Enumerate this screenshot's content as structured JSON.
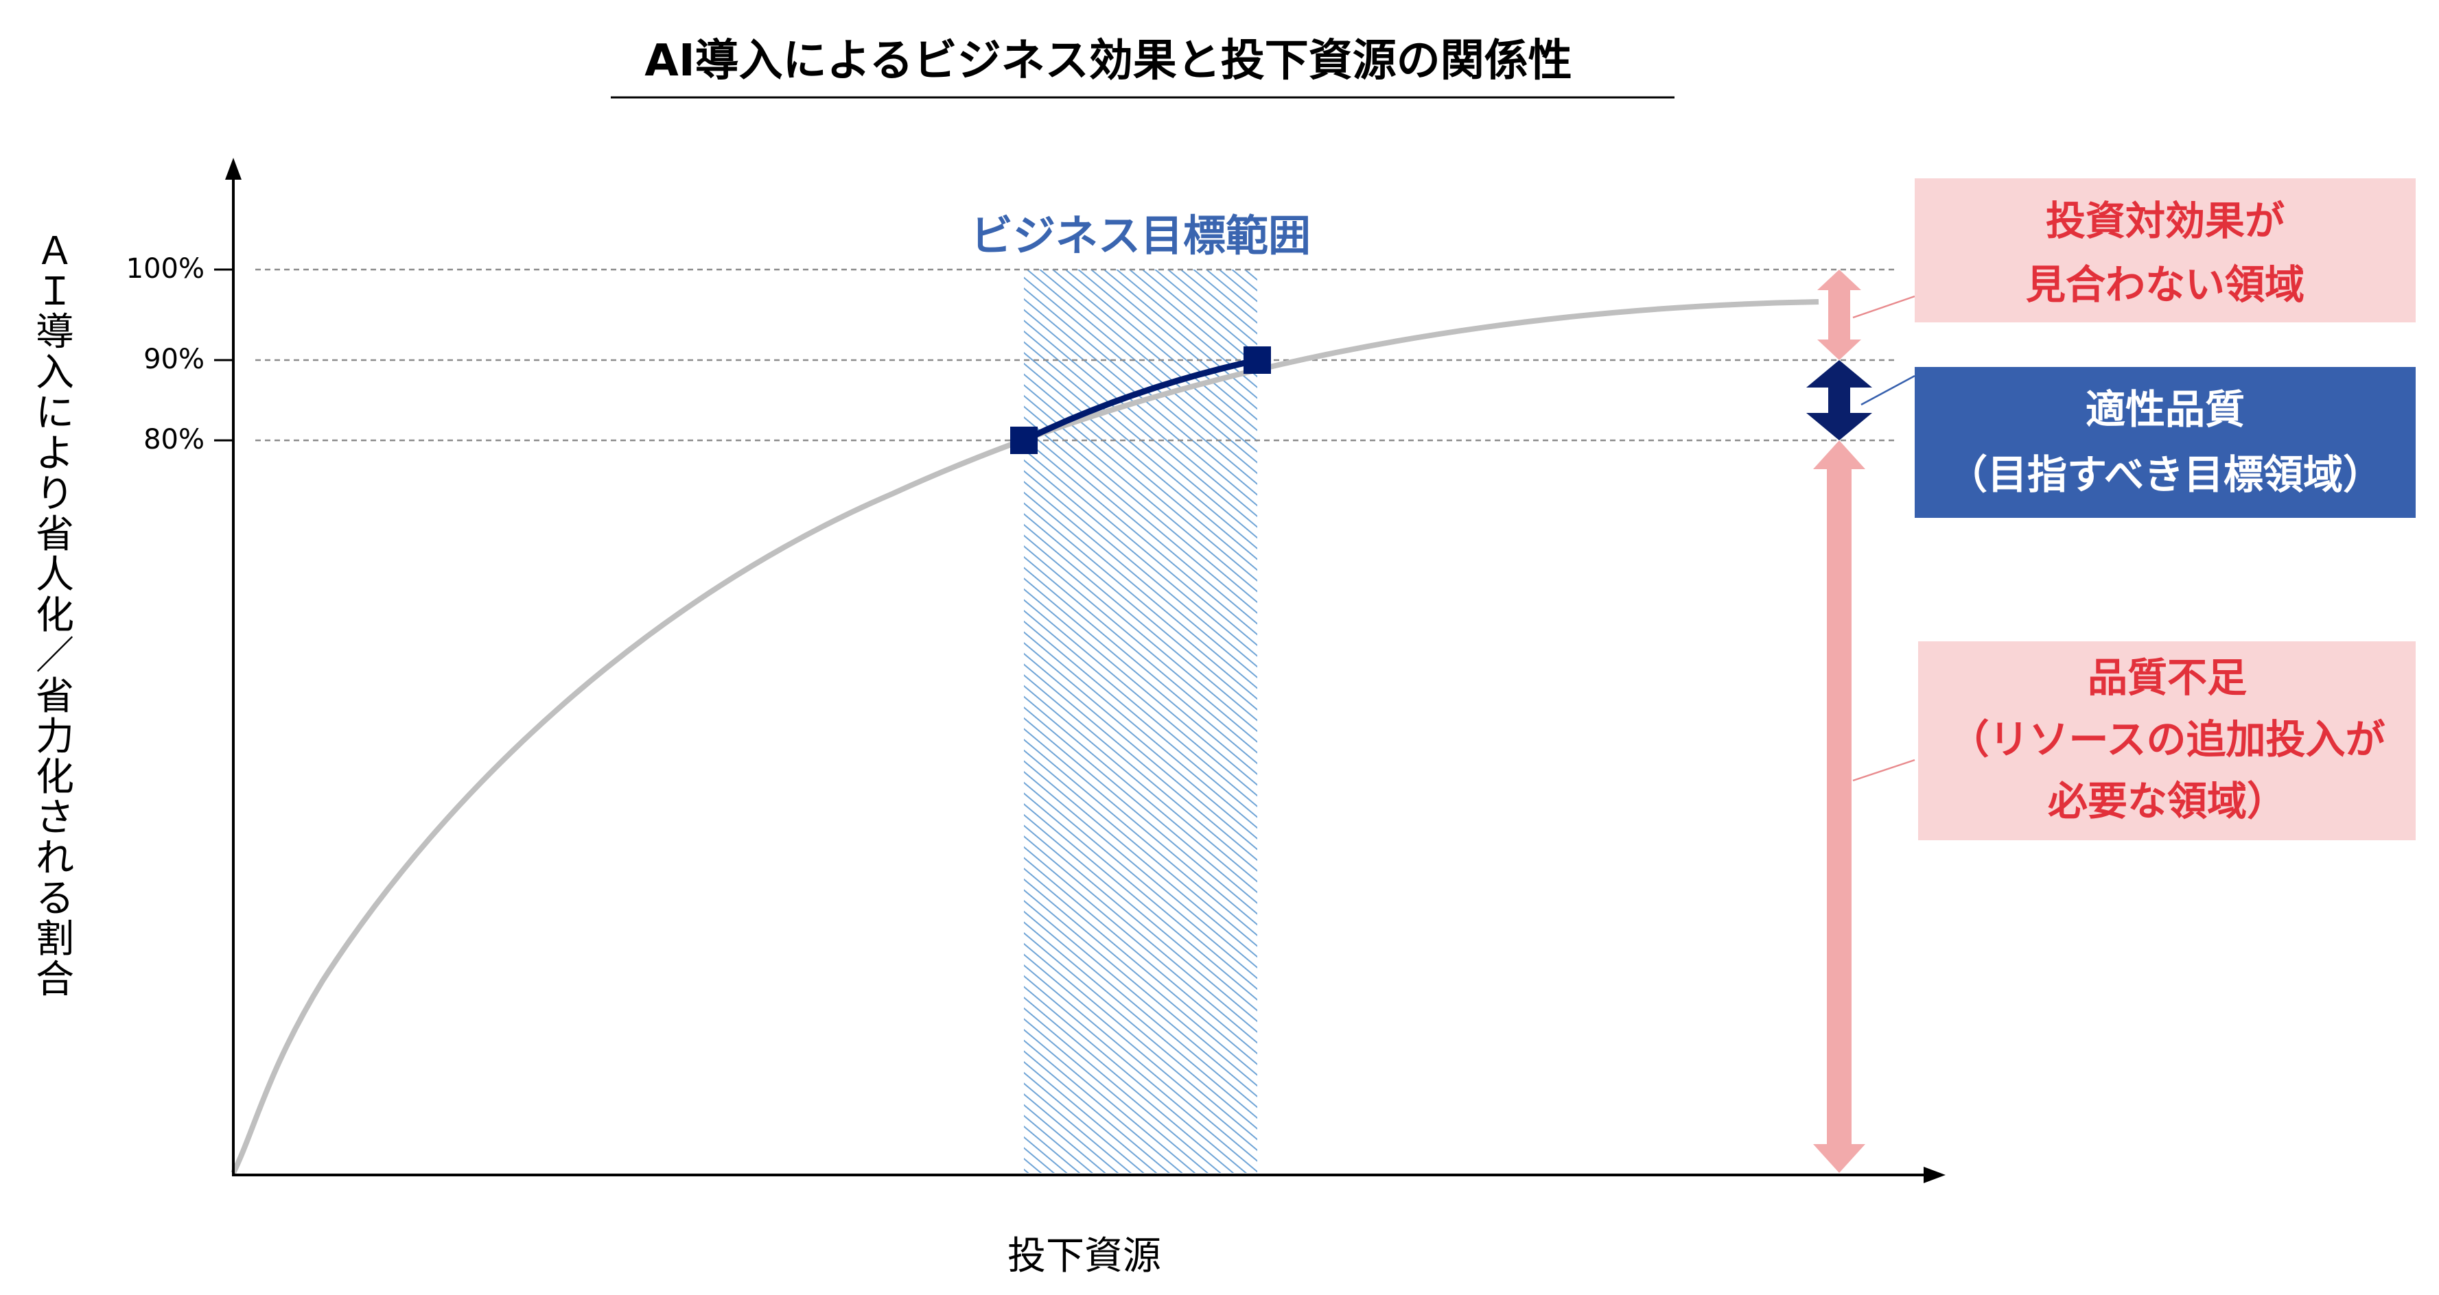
{
  "title": "AI導入によるビジネス効果と投下資源の関係性",
  "y_axis_label": "ＡＩ導入により省人化／省力化される割合",
  "x_axis_label": "投下資源",
  "target_band_label": "ビジネス目標範囲",
  "y_ticks": [
    "100%",
    "90%",
    "80%"
  ],
  "zones": {
    "over_investment": {
      "lines": [
        "投資対効果が",
        "見合わない領域"
      ],
      "fill": "#f9d5d6",
      "text_color": "#e2313b"
    },
    "optimal": {
      "lines": [
        "適性品質",
        "（目指すべき目標領域）"
      ],
      "fill": "#3760ad",
      "text_color": "#ffffff"
    },
    "insufficient": {
      "lines": [
        "品質不足",
        "（リソースの追加投入が",
        "必要な領域）"
      ],
      "fill": "#f9d5d6",
      "text_color": "#e2313b"
    }
  },
  "colors": {
    "curve": "#bfbfbf",
    "target_segment": "#001a6e",
    "band_hatch": "#6fa4d6",
    "band_label": "#3a65b0",
    "arrow_pink": "#f2aaab",
    "arrow_navy": "#0a1f6b",
    "gridline": "#8c8c8c",
    "axis": "#000000"
  }
}
